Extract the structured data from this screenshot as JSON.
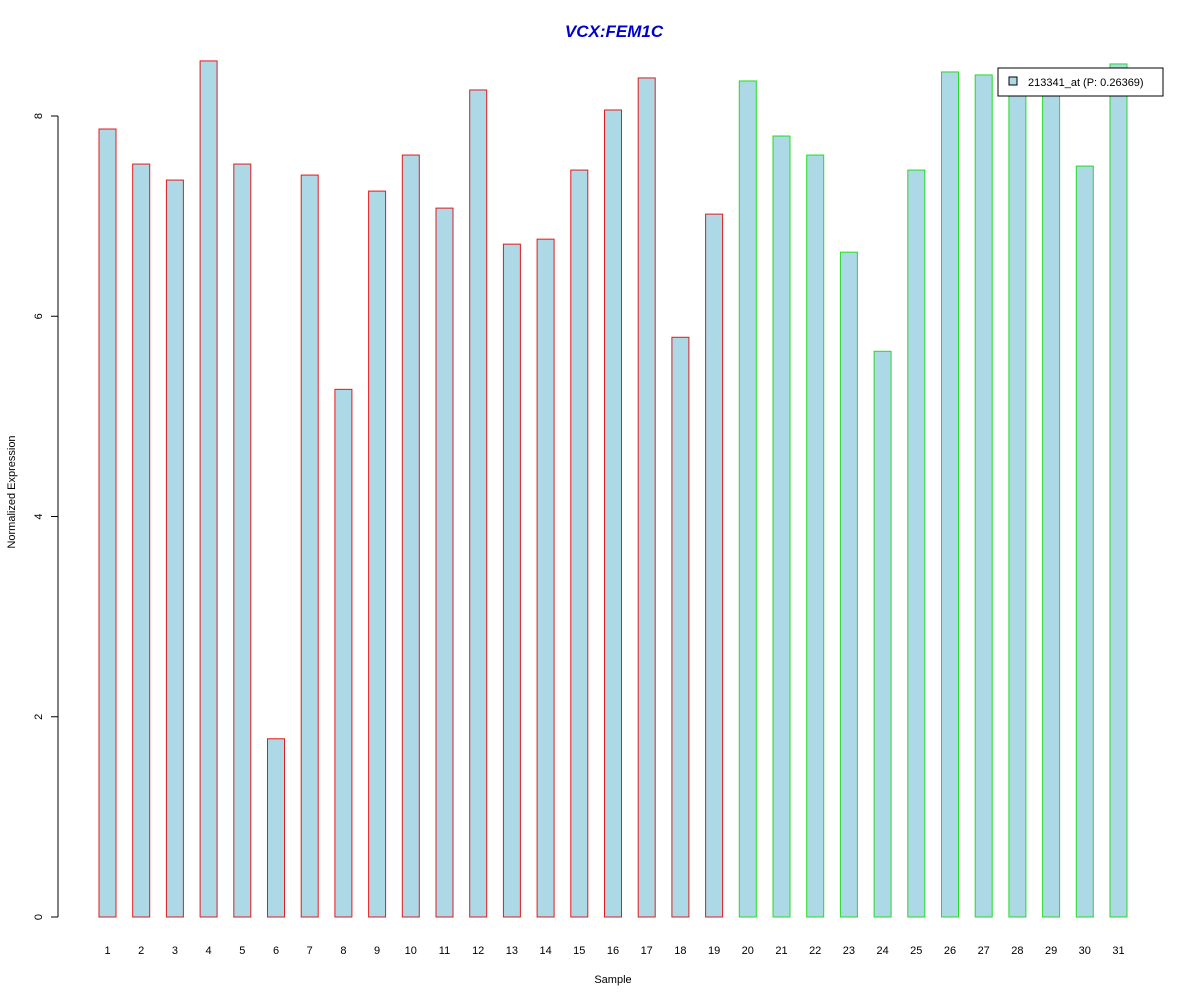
{
  "chart_data": {
    "type": "bar",
    "title": "VCX:FEM1C",
    "xlabel": "Sample",
    "ylabel": "Normalized Expression",
    "ylim": [
      0,
      8.6
    ],
    "yticks": [
      0,
      2,
      4,
      6,
      8
    ],
    "grid": false,
    "legend_position": "top-right",
    "legend_label": "213341_at (P: 0.26369)",
    "categories": [
      "1",
      "2",
      "3",
      "4",
      "5",
      "6",
      "7",
      "8",
      "9",
      "10",
      "11",
      "12",
      "13",
      "14",
      "15",
      "16",
      "17",
      "18",
      "19",
      "20",
      "21",
      "22",
      "23",
      "24",
      "25",
      "26",
      "27",
      "28",
      "29",
      "30",
      "31"
    ],
    "series": [
      {
        "name": "213341_at (P: 0.26369)",
        "values": [
          7.87,
          7.52,
          7.36,
          8.55,
          7.52,
          1.78,
          7.41,
          5.27,
          7.25,
          7.61,
          7.08,
          8.26,
          6.72,
          6.77,
          7.46,
          8.06,
          8.38,
          5.79,
          7.02,
          8.35,
          7.8,
          7.61,
          6.64,
          5.65,
          7.46,
          8.44,
          8.41,
          8.28,
          8.22,
          7.5,
          8.52
        ]
      }
    ],
    "groups": [
      {
        "range": [
          1,
          19
        ],
        "border_color": "#e31a1c"
      },
      {
        "range": [
          20,
          31
        ],
        "border_color": "#22dd22"
      }
    ],
    "colors": {
      "bar_fill": "#add8e6",
      "title": "#0000cc"
    }
  }
}
